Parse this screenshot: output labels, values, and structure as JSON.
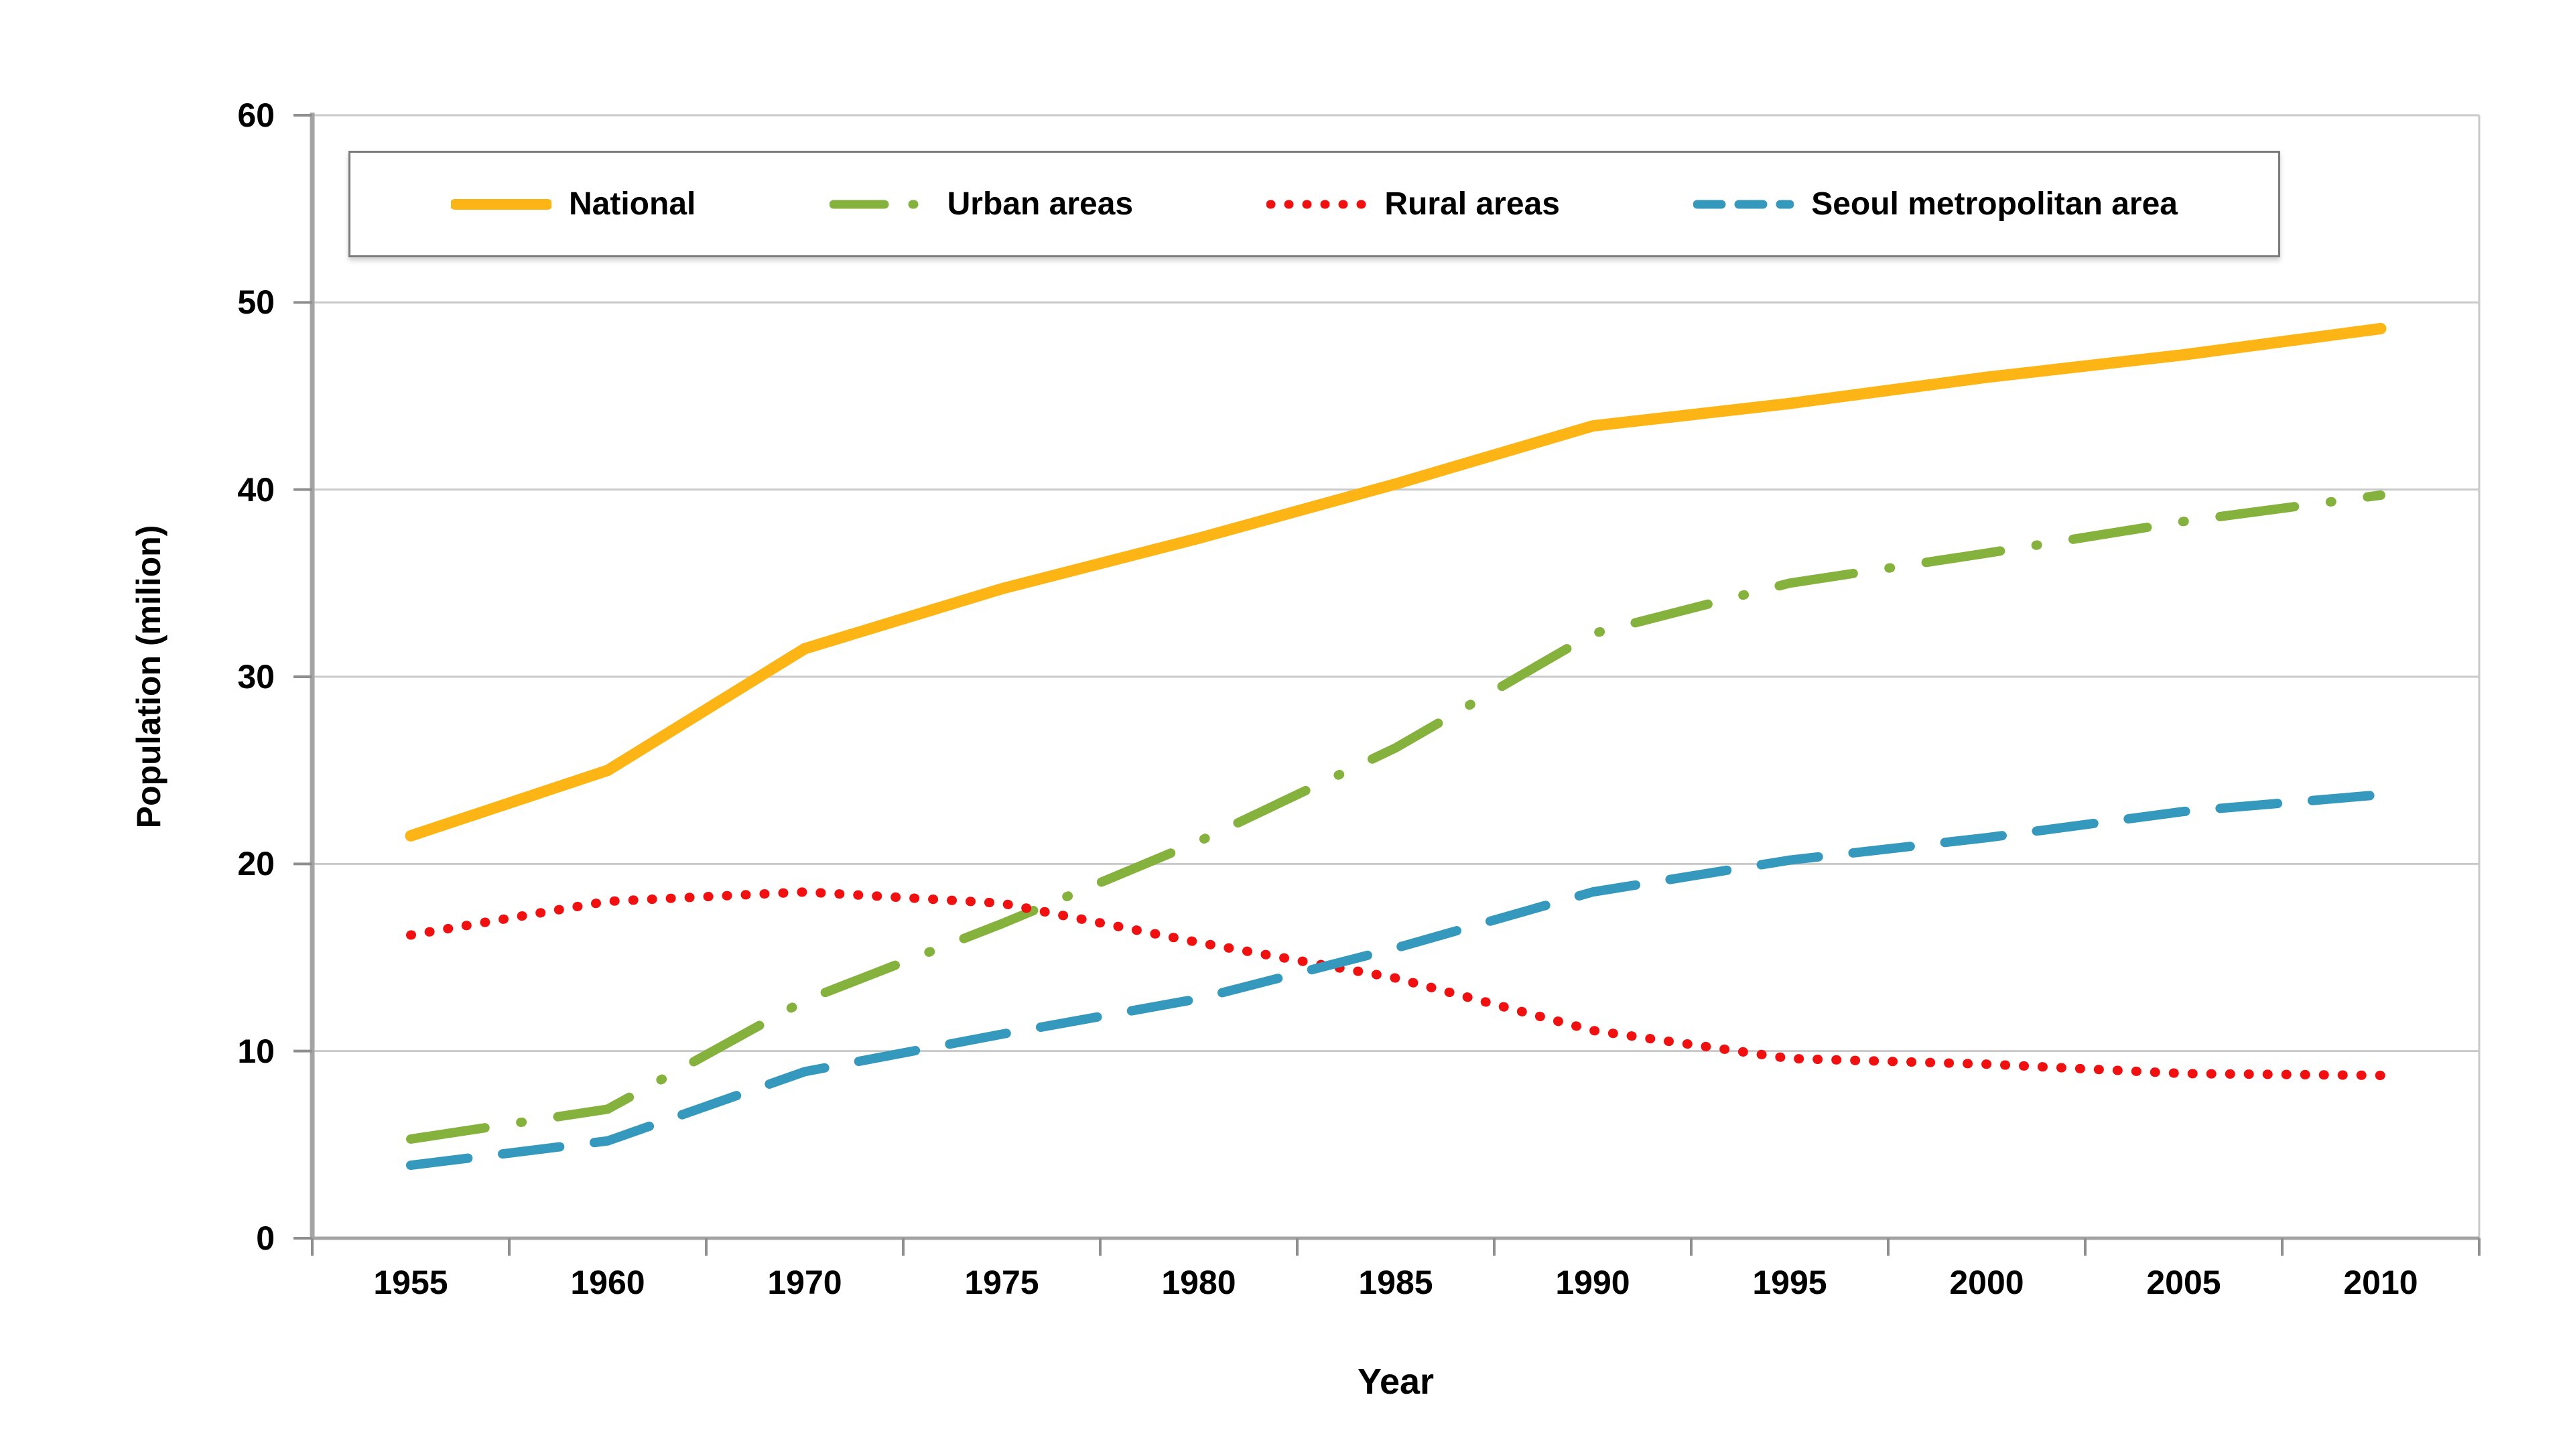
{
  "axes": {
    "x_title": "Year",
    "y_title": "Population (milion)"
  },
  "colors": {
    "background": "#FFFFFF",
    "gridline": "#C9C9C9",
    "plot_border": "#C9C9C9",
    "axis": "#A3A3A3",
    "tick": "#8F8F8F",
    "legend_border": "#7C7C7C",
    "text": "#000000"
  },
  "chart_data": {
    "type": "line",
    "title": "",
    "xlabel": "Year",
    "ylabel": "Population (milion)",
    "categories": [
      "1955",
      "1960",
      "1970",
      "1975",
      "1980",
      "1985",
      "1990",
      "1995",
      "2000",
      "2005",
      "2010"
    ],
    "y_ticks": [
      "0",
      "10",
      "20",
      "30",
      "40",
      "50",
      "60"
    ],
    "ylim": [
      0,
      60
    ],
    "grid": "horizontal",
    "legend_position": "top",
    "series": [
      {
        "name": "National",
        "color": "#FDB515",
        "line_style": "solid",
        "values": [
          21.5,
          25.0,
          31.5,
          34.7,
          37.4,
          40.3,
          43.4,
          44.6,
          46.0,
          47.2,
          48.6
        ]
      },
      {
        "name": "Urban areas",
        "color": "#85B13D",
        "line_style": "dash-dot",
        "values": [
          5.3,
          6.9,
          12.7,
          16.8,
          21.2,
          26.2,
          32.3,
          35.0,
          36.6,
          38.3,
          39.7
        ]
      },
      {
        "name": "Rural areas",
        "color": "#F20F0F",
        "line_style": "dotted",
        "values": [
          16.2,
          18.0,
          18.5,
          17.9,
          15.8,
          13.9,
          11.1,
          9.6,
          9.3,
          8.8,
          8.7
        ]
      },
      {
        "name": "Seoul metropolitan area",
        "color": "#3598BD",
        "line_style": "dashed",
        "values": [
          3.9,
          5.2,
          8.9,
          10.9,
          12.8,
          15.5,
          18.5,
          20.2,
          21.4,
          22.8,
          23.7
        ]
      }
    ]
  }
}
